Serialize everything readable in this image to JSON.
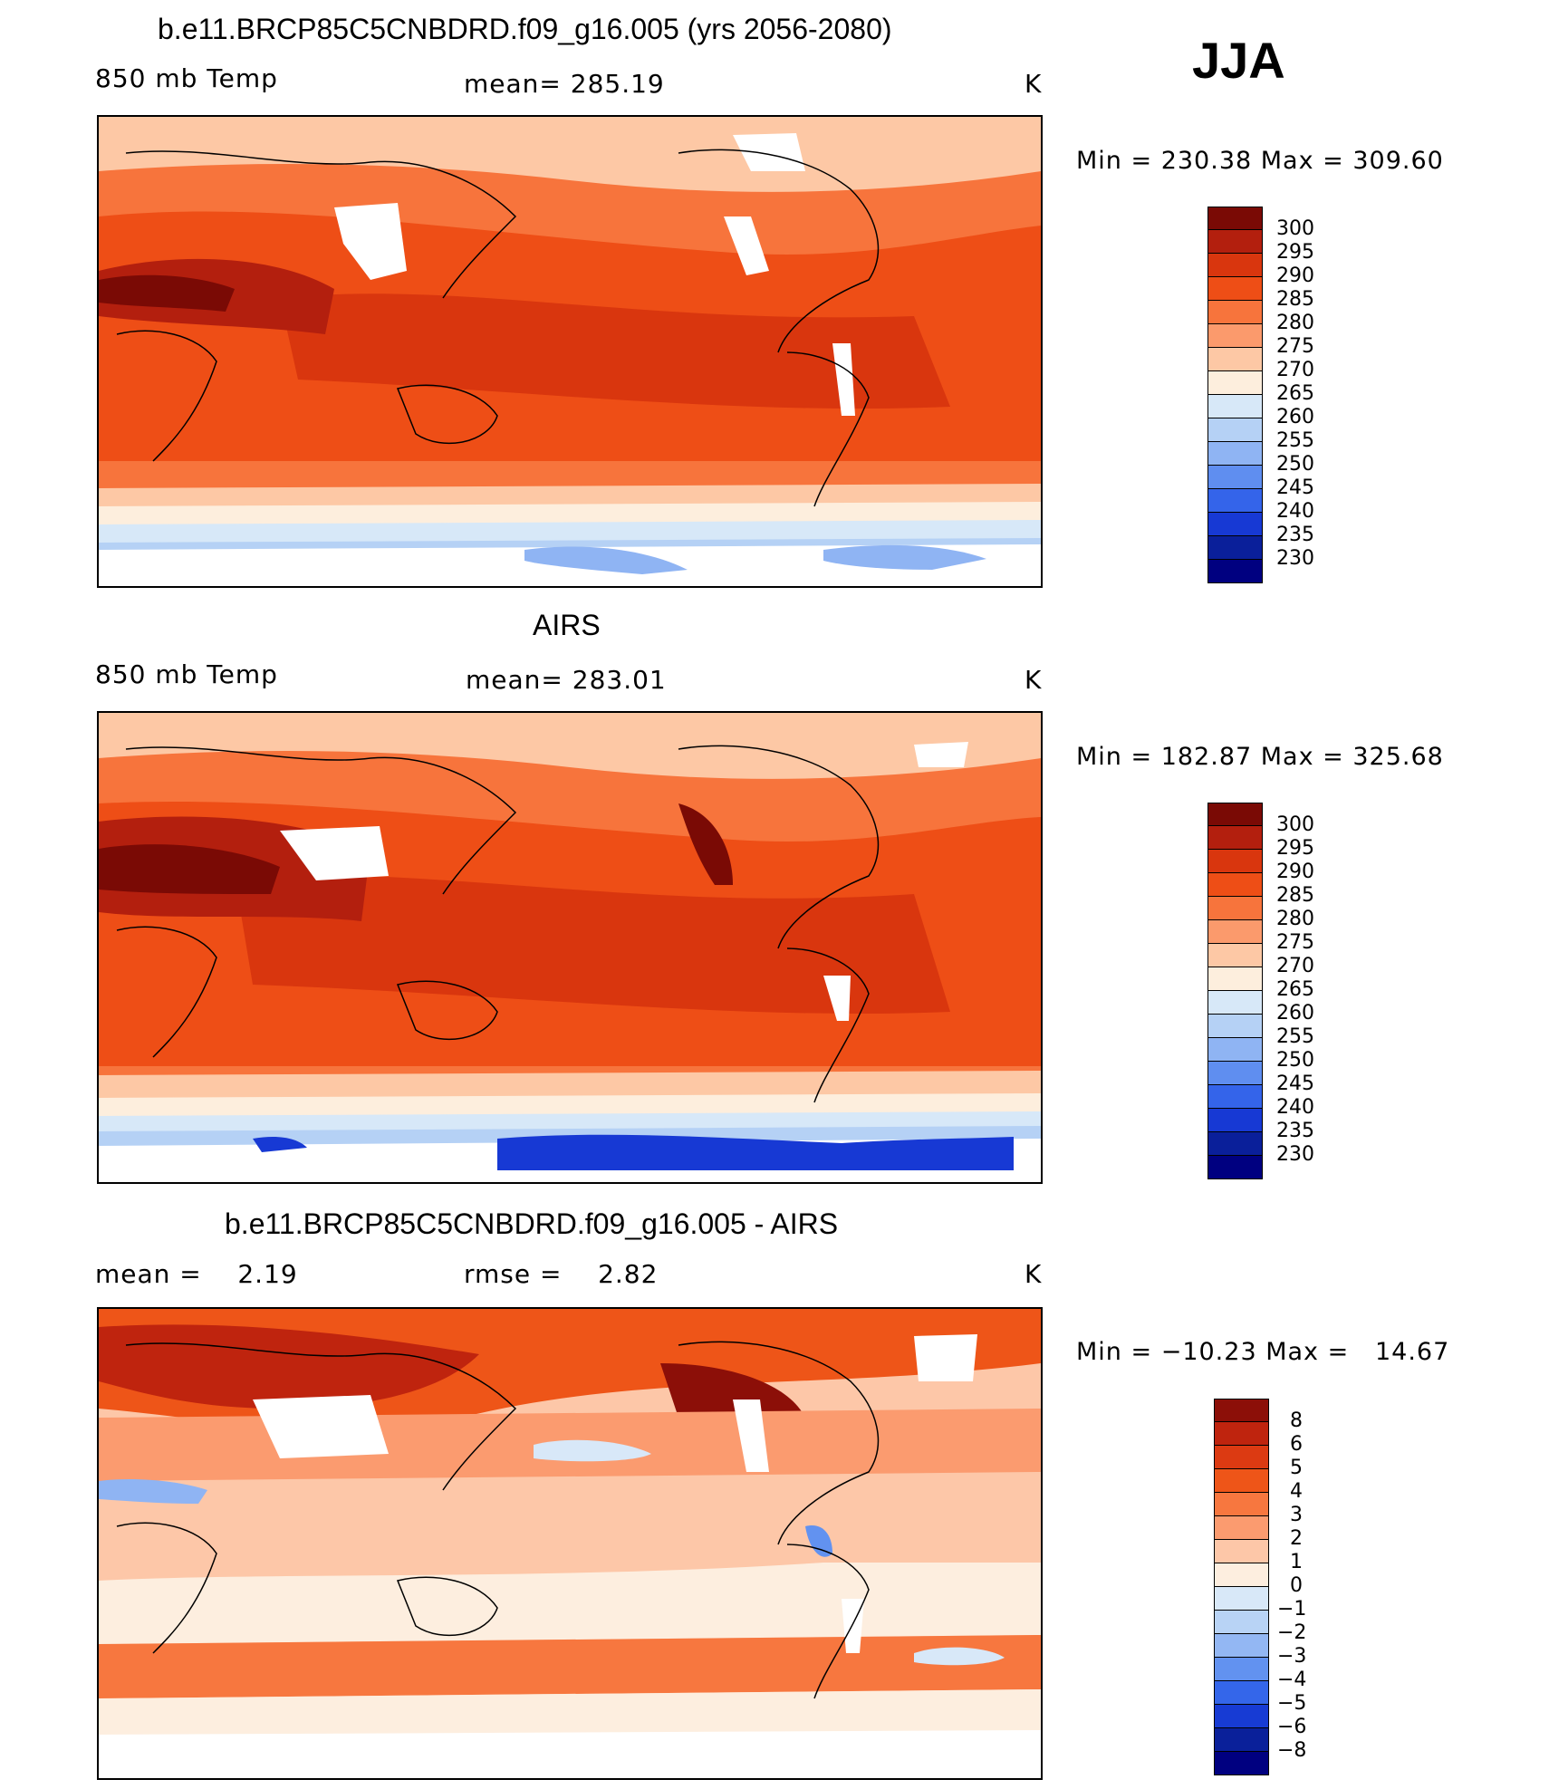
{
  "season": "JJA",
  "panels": [
    {
      "title": "b.e11.BRCP85C5CNBDRD.f09_g16.005 (yrs 2056-2080)",
      "variable": "850 mb Temp",
      "stat": "mean= 285.19",
      "units": "K",
      "minmax": "Min = 230.38 Max = 309.60",
      "colorbar_labels": [
        "300",
        "295",
        "290",
        "285",
        "280",
        "275",
        "270",
        "265",
        "260",
        "255",
        "250",
        "245",
        "240",
        "235",
        "230"
      ]
    },
    {
      "title": "AIRS",
      "variable": "850 mb Temp",
      "stat": "mean= 283.01",
      "units": "K",
      "minmax": "Min = 182.87 Max = 325.68",
      "colorbar_labels": [
        "300",
        "295",
        "290",
        "285",
        "280",
        "275",
        "270",
        "265",
        "260",
        "255",
        "250",
        "245",
        "240",
        "235",
        "230"
      ]
    },
    {
      "title": "b.e11.BRCP85C5CNBDRD.f09_g16.005 - AIRS",
      "stat_left": "mean =    2.19",
      "stat_mid": "rmse =    2.82",
      "units": "K",
      "minmax": "Min = −10.23 Max =   14.67",
      "colorbar_labels": [
        "8",
        "6",
        "5",
        "4",
        "3",
        "2",
        "1",
        "0",
        "−1",
        "−2",
        "−3",
        "−4",
        "−5",
        "−6",
        "−8"
      ]
    }
  ],
  "colors": {
    "abs_scale": [
      "#7a0a05",
      "#b31f0e",
      "#d9360e",
      "#ee4e16",
      "#f7743c",
      "#fb9a6c",
      "#fdc8a5",
      "#fdeedd",
      "#d7e8f8",
      "#b5d1f5",
      "#8fb4f3",
      "#5f8ef0",
      "#3464ea",
      "#1739d4",
      "#0a1f9a",
      "#000080"
    ],
    "diff_scale": [
      "#8c0f08",
      "#bf240e",
      "#dc3a12",
      "#ee5518",
      "#f7773f",
      "#fb9b6f",
      "#fdc7a8",
      "#fdeedf",
      "#d8e8f8",
      "#b8d3f5",
      "#93b7f3",
      "#6292f0",
      "#3466ea",
      "#173bd4",
      "#0a209a",
      "#000080"
    ]
  }
}
